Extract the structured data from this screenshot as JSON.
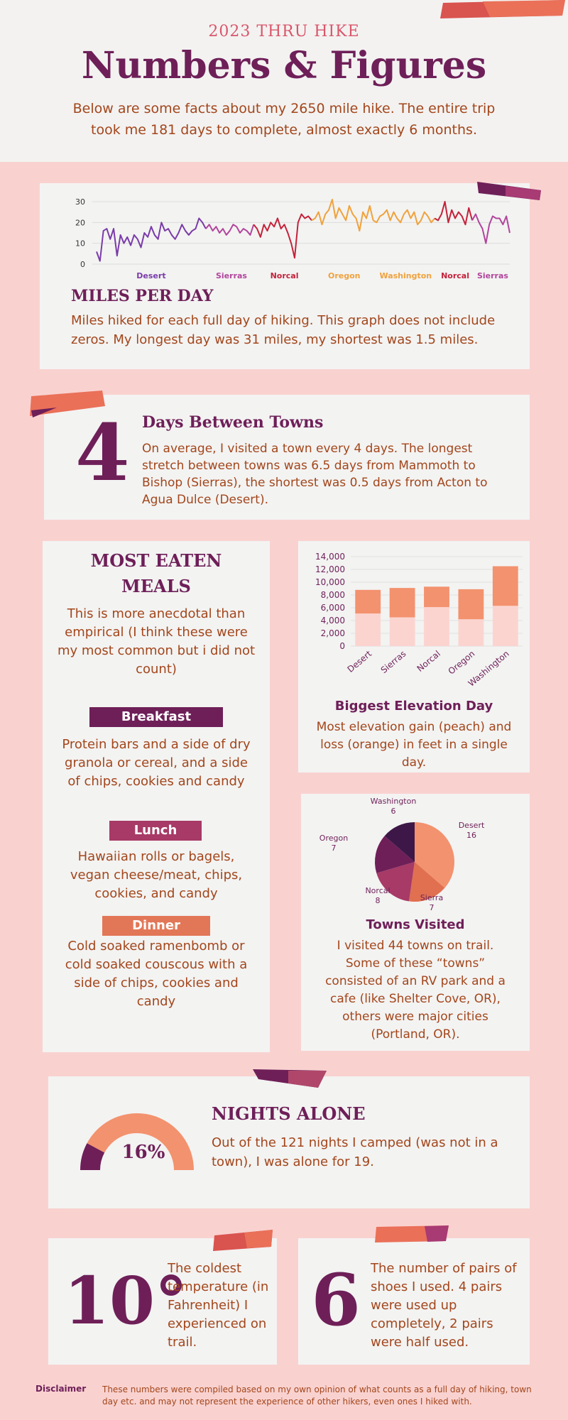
{
  "header": {
    "eyebrow": "2023 THRU HIKE",
    "title": "Numbers & Figures",
    "intro": "Below are some facts about my 2650 mile hike. The entire trip took me 181 days to complete, almost exactly 6 months."
  },
  "colors": {
    "plum": "#6e1f58",
    "brown": "#a3461b",
    "purple": "#7a3ca8",
    "magenta": "#b2459c",
    "red": "#c4223a",
    "orange": "#f0a23c",
    "peach": "#f3926e",
    "light_pink": "#fbd4d0",
    "background": "#f9d2d0"
  },
  "miles_per_day": {
    "title": "MILES PER DAY",
    "description": "Miles hiked for each full day of hiking. This graph does not include zeros. My longest day was 31 miles, my shortest was 1.5 miles.",
    "chart_data": {
      "type": "line",
      "ylim": [
        0,
        30
      ],
      "yticks": [
        "0",
        "10",
        "20",
        "30"
      ],
      "grid": true,
      "segments": [
        {
          "name": "Desert",
          "color": "#7a3ca8",
          "values": [
            6,
            1.5,
            16,
            17,
            12,
            17,
            4,
            14,
            10,
            13,
            9,
            14,
            12,
            8,
            15,
            13,
            18,
            14,
            12,
            20,
            16,
            17,
            14,
            12,
            15,
            19,
            16,
            14,
            16,
            17,
            22,
            20,
            17
          ]
        },
        {
          "name": "Sierras",
          "color": "#b2459c",
          "values": [
            19,
            16,
            18,
            15,
            17,
            14,
            16,
            19,
            18,
            15,
            17,
            16,
            14,
            19
          ]
        },
        {
          "name": "Norcal",
          "color": "#c4223a",
          "values": [
            17,
            13,
            19,
            16,
            20,
            18,
            22,
            17,
            19,
            15,
            10,
            3,
            20,
            24,
            22,
            23,
            21
          ]
        },
        {
          "name": "Oregon",
          "color": "#f0a23c",
          "values": [
            22,
            25,
            19,
            24,
            26,
            31,
            22,
            27,
            24,
            21,
            28,
            24,
            22,
            16,
            25,
            22,
            28,
            21
          ]
        },
        {
          "name": "Washington",
          "color": "#f0a23c",
          "values": [
            20,
            23,
            24,
            26,
            21,
            25,
            22,
            20,
            24,
            26,
            22,
            25,
            19,
            21,
            25,
            23,
            20,
            22
          ]
        },
        {
          "name": "Norcal",
          "color": "#c4223a",
          "values": [
            21,
            24,
            30,
            20,
            26,
            22,
            25,
            23,
            19,
            27,
            21
          ]
        },
        {
          "name": "Sierras",
          "color": "#b2459c",
          "values": [
            24,
            20,
            17,
            10,
            19,
            23,
            22,
            22,
            19,
            23,
            15
          ]
        }
      ],
      "x_labels": [
        "Desert",
        "Sierras",
        "Norcal",
        "Oregon",
        "Washington",
        "Norcal",
        "Sierras"
      ]
    }
  },
  "days_between_towns": {
    "number": "4",
    "title": "Days Between Towns",
    "description": "On average, I visited a town every 4 days. The longest stretch between towns was 6.5 days from Mammoth to Bishop (Sierras), the shortest was 0.5 days from Acton to Agua Dulce (Desert)."
  },
  "meals": {
    "title": "MOST EATEN MEALS",
    "note": "This is more anecdotal than empirical (I think these were my most common but i did not count)",
    "breakfast_label": "Breakfast",
    "breakfast": "Protein bars and a side of dry granola or cereal, and a side of chips, cookies and candy",
    "lunch_label": "Lunch",
    "lunch": "Hawaiian rolls or bagels, vegan cheese/meat, chips, cookies, and candy",
    "dinner_label": "Dinner",
    "dinner": "Cold soaked ramenbomb or cold soaked couscous with a side of chips, cookies and candy"
  },
  "elevation": {
    "title": "Biggest Elevation Day",
    "description": "Most elevation gain (peach) and loss (orange) in feet in a single day.",
    "chart_data": {
      "type": "bar",
      "stacked": true,
      "categories": [
        "Desert",
        "Sierras",
        "Norcal",
        "Oregon",
        "Washington"
      ],
      "ylim": [
        0,
        14000
      ],
      "yticks": [
        "0",
        "2,000",
        "4,000",
        "6,000",
        "8,000",
        "10,000",
        "12,000",
        "14,000"
      ],
      "series": [
        {
          "color": "#fbd4d0",
          "values": [
            5100,
            4500,
            6100,
            4200,
            6300
          ]
        },
        {
          "color": "#f3926e",
          "values": [
            3700,
            4600,
            3200,
            4700,
            6200
          ]
        }
      ]
    }
  },
  "towns": {
    "title": "Towns Visited",
    "description": "I visited 44 towns on trail. Some of these “towns” consisted of an RV park and a cafe (like Shelter Cove, OR), others were major cities (Portland, OR).",
    "chart_data": {
      "type": "pie",
      "slices": [
        {
          "name": "Desert",
          "value": 16,
          "label": "16",
          "color": "#f3926e"
        },
        {
          "name": "Sierra",
          "value": 7,
          "label": "7",
          "color": "#e07050"
        },
        {
          "name": "Norcal",
          "value": 8,
          "label": "8",
          "color": "#a73a66"
        },
        {
          "name": "Oregon",
          "value": 7,
          "label": "7",
          "color": "#6e1f58"
        },
        {
          "name": "Washington",
          "value": 6,
          "label": "6",
          "color": "#3d1747"
        }
      ]
    }
  },
  "nights_alone": {
    "title": "NIGHTS ALONE",
    "percent_label": "16%",
    "fraction": 0.157,
    "description": "Out of the 121 nights I camped (was not in a town),  I was alone for 19."
  },
  "coldest": {
    "number": "10°",
    "description": "The coldest temperature (in Fahrenheit) I experienced on trail."
  },
  "shoes": {
    "number": "6",
    "description": "The number of pairs of shoes I used. 4 pairs were used up completely, 2 pairs were half used."
  },
  "disclaimer": {
    "label": "Disclaimer",
    "text": "These numbers were compiled based on my own opinion of what counts as a full day of hiking, town day etc. and may not represent the experience of other hikers, even ones I hiked with."
  }
}
